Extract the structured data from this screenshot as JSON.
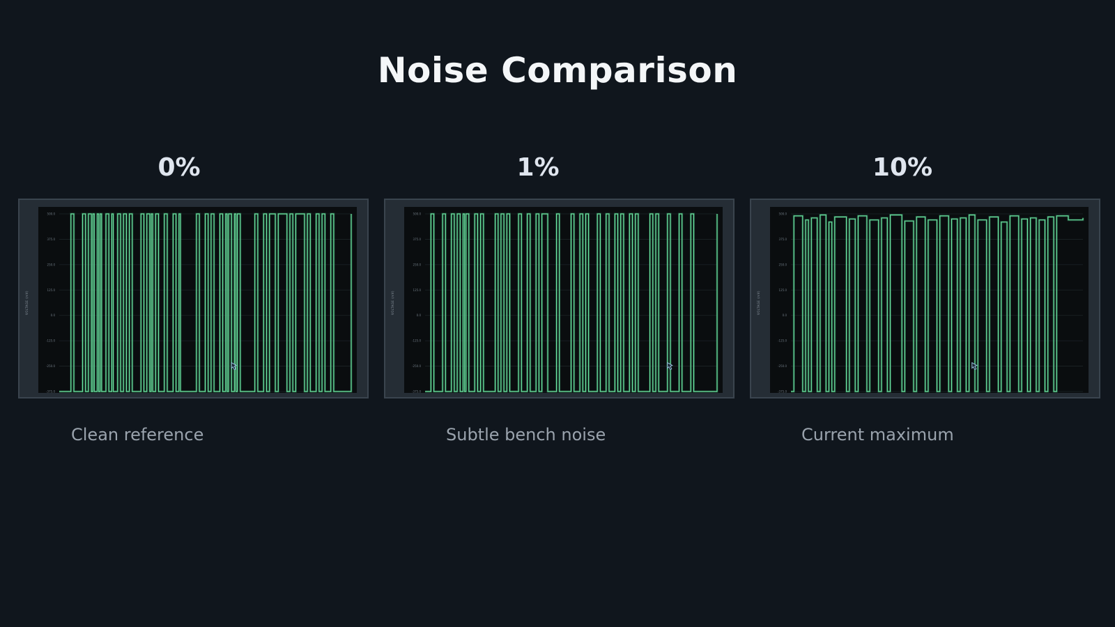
{
  "title": "Noise Comparison",
  "colors": {
    "background": "#10161d",
    "trace": "#6be3a0",
    "trace_dim": "#2e7a55",
    "plot_bg": "#0a0d0f",
    "grid": "#1c2428"
  },
  "panels": [
    {
      "heading": "0%",
      "caption": "Clean reference"
    },
    {
      "heading": "1%",
      "caption": "Subtle bench noise"
    },
    {
      "heading": "10%",
      "caption": "Current maximum"
    }
  ],
  "cursor_icon": "mouse-pointer-icon",
  "chart_data": [
    {
      "type": "line",
      "title": "",
      "xlabel": "",
      "ylabel": "VOLTAGE (mV)",
      "ylim": [
        -375,
        500
      ],
      "yticks": [
        "500.0",
        "375.0",
        "250.0",
        "125.0",
        "0.0",
        "-125.0",
        "-250.0",
        "-375.0"
      ],
      "grid": true,
      "noise_percent": 0,
      "series": [
        {
          "x": [
            0,
            0.04,
            0.05,
            0.08,
            0.09,
            0.1,
            0.11,
            0.115,
            0.12,
            0.13,
            0.135,
            0.14,
            0.145,
            0.16,
            0.17,
            0.18,
            0.185,
            0.2,
            0.21,
            0.22,
            0.23,
            0.24,
            0.25,
            0.28,
            0.29,
            0.3,
            0.31,
            0.315,
            0.32,
            0.33,
            0.34,
            0.36,
            0.37,
            0.39,
            0.4,
            0.41,
            0.415,
            0.47,
            0.48,
            0.5,
            0.51,
            0.52,
            0.53,
            0.55,
            0.56,
            0.57,
            0.575,
            0.58,
            0.59,
            0.6,
            0.605,
            0.61,
            0.62,
            0.67,
            0.68,
            0.7,
            0.71,
            0.72,
            0.74,
            0.75,
            0.78,
            0.79,
            0.8,
            0.81,
            0.84,
            0.85,
            0.86,
            0.88,
            0.89,
            0.9,
            0.91,
            0.93,
            0.94,
            1.0
          ],
          "y": [
            -375,
            500,
            -375,
            500,
            -375,
            500,
            -375,
            500,
            -375,
            500,
            -375,
            500,
            -375,
            500,
            -375,
            500,
            -375,
            500,
            -375,
            500,
            -375,
            500,
            -375,
            500,
            -375,
            500,
            -375,
            500,
            -375,
            500,
            -375,
            500,
            -375,
            500,
            -375,
            500,
            -375,
            500,
            -375,
            500,
            -375,
            500,
            -375,
            500,
            -375,
            500,
            -375,
            500,
            -375,
            500,
            -375,
            500,
            -375,
            500,
            -375,
            500,
            -375,
            500,
            -375,
            500,
            -375,
            500,
            -375,
            500,
            -375,
            500,
            -375,
            500,
            -375,
            500,
            -375,
            500,
            -375,
            500
          ]
        }
      ]
    },
    {
      "type": "line",
      "title": "",
      "xlabel": "",
      "ylabel": "VOLTAGE (mV)",
      "ylim": [
        -375,
        500
      ],
      "yticks": [
        "500.0",
        "375.0",
        "250.0",
        "125.0",
        "0.0",
        "-125.0",
        "-250.0",
        "-375.0"
      ],
      "grid": true,
      "noise_percent": 1,
      "series": [
        {
          "x": [
            0,
            0.02,
            0.03,
            0.06,
            0.07,
            0.09,
            0.1,
            0.11,
            0.12,
            0.13,
            0.135,
            0.14,
            0.15,
            0.17,
            0.18,
            0.19,
            0.2,
            0.24,
            0.25,
            0.26,
            0.27,
            0.28,
            0.29,
            0.32,
            0.33,
            0.35,
            0.36,
            0.38,
            0.39,
            0.4,
            0.42,
            0.45,
            0.46,
            0.5,
            0.51,
            0.53,
            0.54,
            0.55,
            0.56,
            0.59,
            0.6,
            0.62,
            0.63,
            0.65,
            0.66,
            0.67,
            0.68,
            0.7,
            0.71,
            0.72,
            0.73,
            0.77,
            0.78,
            0.79,
            0.8,
            0.83,
            0.84,
            0.87,
            0.88,
            0.91,
            0.92,
            1.0
          ],
          "y": [
            -375,
            500,
            -375,
            500,
            -375,
            500,
            -375,
            500,
            -375,
            500,
            -375,
            500,
            -375,
            500,
            -375,
            500,
            -375,
            500,
            -375,
            500,
            -375,
            500,
            -375,
            500,
            -375,
            500,
            -375,
            500,
            -375,
            500,
            -375,
            500,
            -375,
            500,
            -375,
            500,
            -375,
            500,
            -375,
            500,
            -375,
            500,
            -375,
            500,
            -375,
            500,
            -375,
            500,
            -375,
            500,
            -375,
            500,
            -375,
            500,
            -375,
            500,
            -375,
            500,
            -375,
            500,
            -375,
            500
          ]
        }
      ]
    },
    {
      "type": "line",
      "title": "",
      "xlabel": "",
      "ylabel": "VOLTAGE (mV)",
      "ylim": [
        -375,
        500
      ],
      "yticks": [
        "500.0",
        "375.0",
        "250.0",
        "125.0",
        "0.0",
        "-125.0",
        "-250.0",
        "-375.0"
      ],
      "grid": true,
      "noise_percent": 10,
      "series": [
        {
          "x": [
            0,
            0.01,
            0.04,
            0.05,
            0.06,
            0.07,
            0.09,
            0.1,
            0.12,
            0.13,
            0.14,
            0.15,
            0.19,
            0.2,
            0.22,
            0.23,
            0.26,
            0.27,
            0.3,
            0.31,
            0.33,
            0.34,
            0.38,
            0.39,
            0.42,
            0.43,
            0.46,
            0.47,
            0.5,
            0.51,
            0.54,
            0.55,
            0.57,
            0.58,
            0.6,
            0.61,
            0.63,
            0.64,
            0.67,
            0.68,
            0.71,
            0.72,
            0.74,
            0.75,
            0.78,
            0.79,
            0.81,
            0.82,
            0.84,
            0.85,
            0.87,
            0.88,
            0.9,
            0.91,
            0.95,
            1.0
          ],
          "y": [
            -375,
            490,
            -375,
            470,
            -375,
            480,
            -375,
            495,
            -375,
            460,
            -375,
            485,
            -375,
            475,
            -375,
            490,
            -375,
            470,
            -375,
            480,
            -375,
            495,
            -375,
            465,
            -375,
            485,
            -375,
            470,
            -375,
            490,
            -375,
            475,
            -375,
            480,
            -375,
            495,
            -375,
            470,
            -375,
            485,
            -375,
            460,
            -375,
            490,
            -375,
            475,
            -375,
            480,
            -375,
            470,
            -375,
            485,
            -375,
            490,
            470,
            480
          ]
        }
      ]
    }
  ]
}
